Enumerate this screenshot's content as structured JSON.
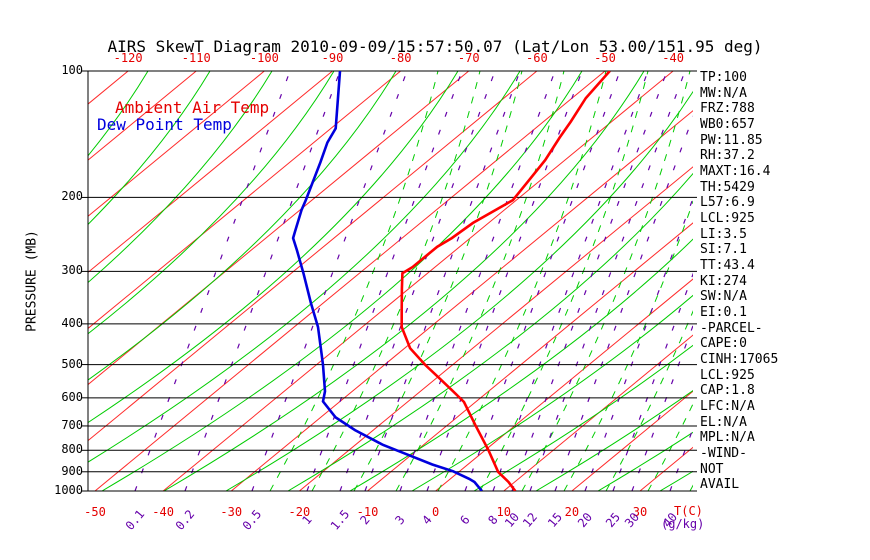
{
  "header": {
    "title": "AIRS SkewT Diagram 2010-09-09/15:57:50.07 (Lat/Lon 53.00/151.95 deg)"
  },
  "legend": {
    "ambient": "Ambient Air Temp",
    "dewpoint": "Dew Point Temp"
  },
  "axes": {
    "pressure": {
      "title": "PRESSURE (MB)",
      "ticks": [
        100,
        200,
        300,
        400,
        500,
        600,
        700,
        800,
        900,
        1000
      ]
    },
    "temperature": {
      "unit_label": "T(C)",
      "top_ticks": [
        -120,
        -110,
        -100,
        -90,
        -80,
        -70,
        -60,
        -50,
        -40
      ],
      "bottom_ticks": [
        -50,
        -40,
        -30,
        -20,
        -10,
        0,
        10,
        20,
        30
      ]
    },
    "mixing_ratio": {
      "unit_label": "(g/kg)",
      "ticks": [
        "0.1",
        "0.2",
        "0.5",
        "1",
        "1.5",
        "2",
        "3",
        "4",
        "6",
        "8",
        "10",
        "12",
        "15",
        "20",
        "25",
        "30",
        "40"
      ]
    }
  },
  "indices": {
    "items": [
      "TP:100",
      "MW:N/A",
      "FRZ:788",
      "WB0:657",
      "PW:11.85",
      "RH:37.2",
      "MAXT:16.4",
      "TH:5429",
      "L57:6.9",
      "LCL:925",
      "LI:3.5",
      "SI:7.1",
      "TT:43.4",
      "KI:274",
      "SW:N/A",
      "EI:0.1",
      "-PARCEL-",
      "CAPE:0",
      "CINH:17065",
      "LCL:925",
      "CAP:1.8",
      "LFC:N/A",
      "EL:N/A",
      "MPL:N/A",
      "-WIND-",
      "NOT",
      "AVAIL"
    ]
  },
  "colors": {
    "ambient_temp": "#ff0000",
    "dew_point": "#0000dd",
    "isotherm_grid": "#ff2a2a",
    "adiabat_grid": "#00cc00",
    "mixing_ratio_grid": "#6600aa",
    "axis": "#000000"
  },
  "chart_data": {
    "type": "line",
    "title": "AIRS SkewT Diagram 2010-09-09/15:57:50.07 (Lat/Lon 53.00/151.95 deg)",
    "y_axis": {
      "label": "PRESSURE (MB)",
      "scale": "log",
      "domain": [
        100,
        1000
      ],
      "grid": true
    },
    "x_axis": {
      "label": "T(C)",
      "bottom_tick_range": [
        -50,
        30
      ],
      "top_tick_range": [
        -120,
        -40
      ],
      "skew": "isotherms slanted up-right"
    },
    "legend_position": "top-left-inside",
    "mixing_ratio_lines_g_per_kg": [
      0.1,
      0.2,
      0.5,
      1,
      1.5,
      2,
      3,
      4,
      6,
      8,
      10,
      12,
      15,
      20,
      25,
      30,
      40
    ],
    "series": [
      {
        "name": "Ambient Air Temp",
        "color": "#ff0000",
        "points": [
          {
            "p": 100,
            "t": -49.3
          },
          {
            "p": 116,
            "t": -48.0
          },
          {
            "p": 132,
            "t": -46.0
          },
          {
            "p": 144,
            "t": -44.8
          },
          {
            "p": 163,
            "t": -42.9
          },
          {
            "p": 185,
            "t": -41.5
          },
          {
            "p": 203,
            "t": -40.5
          },
          {
            "p": 230,
            "t": -42.3
          },
          {
            "p": 250,
            "t": -42.7
          },
          {
            "p": 262,
            "t": -43.3
          },
          {
            "p": 293,
            "t": -43.3
          },
          {
            "p": 303,
            "t": -43.7
          },
          {
            "p": 330,
            "t": -41.0
          },
          {
            "p": 350,
            "t": -39.1
          },
          {
            "p": 370,
            "t": -37.3
          },
          {
            "p": 390,
            "t": -35.6
          },
          {
            "p": 407,
            "t": -34.2
          },
          {
            "p": 457,
            "t": -29.2
          },
          {
            "p": 501,
            "t": -24.0
          },
          {
            "p": 543,
            "t": -19.1
          },
          {
            "p": 579,
            "t": -15.2
          },
          {
            "p": 614,
            "t": -11.7
          },
          {
            "p": 697,
            "t": -5.9
          },
          {
            "p": 800,
            "t": 0.5
          },
          {
            "p": 901,
            "t": 5.8
          },
          {
            "p": 952,
            "t": 9.1
          },
          {
            "p": 1000,
            "t": 11.7
          }
        ]
      },
      {
        "name": "Dew Point Temp",
        "color": "#0000dd",
        "points": [
          {
            "p": 100,
            "t": -88.9
          },
          {
            "p": 137,
            "t": -79.3
          },
          {
            "p": 148,
            "t": -78.0
          },
          {
            "p": 165,
            "t": -75.5
          },
          {
            "p": 203,
            "t": -70.9
          },
          {
            "p": 214,
            "t": -69.8
          },
          {
            "p": 242,
            "t": -66.8
          },
          {
            "p": 250,
            "t": -66.0
          },
          {
            "p": 267,
            "t": -63.3
          },
          {
            "p": 304,
            "t": -58.1
          },
          {
            "p": 356,
            "t": -51.9
          },
          {
            "p": 407,
            "t": -46.5
          },
          {
            "p": 470,
            "t": -41.3
          },
          {
            "p": 501,
            "t": -39.0
          },
          {
            "p": 579,
            "t": -34.0
          },
          {
            "p": 612,
            "t": -32.5
          },
          {
            "p": 668,
            "t": -27.8
          },
          {
            "p": 716,
            "t": -22.7
          },
          {
            "p": 777,
            "t": -15.9
          },
          {
            "p": 811,
            "t": -11.6
          },
          {
            "p": 865,
            "t": -5.2
          },
          {
            "p": 897,
            "t": -1.0
          },
          {
            "p": 936,
            "t": 2.8
          },
          {
            "p": 952,
            "t": 4.1
          },
          {
            "p": 1000,
            "t": 6.8
          }
        ]
      }
    ]
  }
}
